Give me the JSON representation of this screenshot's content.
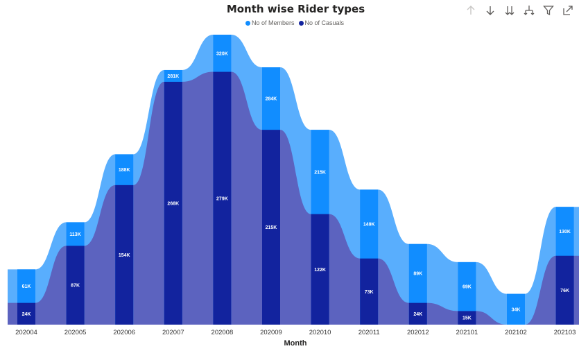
{
  "toolbar": {
    "icons": [
      "drill-up-icon",
      "drill-down-icon",
      "expand-all-down-icon",
      "expand-hierarchy-icon",
      "filter-icon",
      "focus-mode-icon"
    ]
  },
  "chart_data": {
    "type": "area",
    "title": "Month wise Rider types",
    "xlabel": "Month",
    "ylabel": "",
    "legend_position": "top-center",
    "categories": [
      "202004",
      "202005",
      "202006",
      "202007",
      "202008",
      "202009",
      "202010",
      "202011",
      "202012",
      "202101",
      "202102",
      "202103"
    ],
    "series": [
      {
        "name": "No of Members",
        "color": "#118DFF",
        "values": [
          61,
          113,
          188,
          281,
          320,
          284,
          215,
          149,
          89,
          69,
          34,
          130
        ],
        "labels": [
          "61K",
          "113K",
          "188K",
          "281K",
          "320K",
          "284K",
          "215K",
          "149K",
          "89K",
          "69K",
          "34K",
          "130K"
        ]
      },
      {
        "name": "No of Casuals",
        "color": "#12239E",
        "values": [
          24,
          87,
          154,
          268,
          279,
          215,
          122,
          73,
          24,
          15,
          null,
          76
        ],
        "labels": [
          "24K",
          "87K",
          "154K",
          "268K",
          "279K",
          "215K",
          "122K",
          "73K",
          "24K",
          "15K",
          "",
          "76K"
        ]
      }
    ],
    "ylim": [
      0,
      330
    ],
    "grid": false
  }
}
